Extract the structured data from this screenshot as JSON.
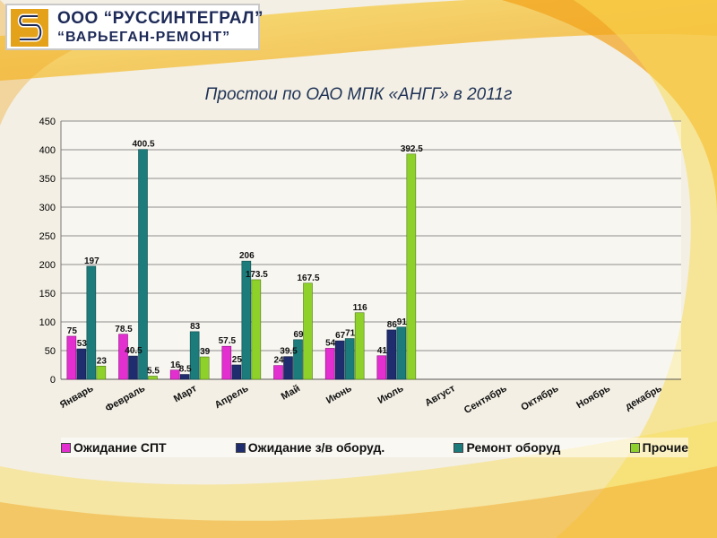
{
  "logo": {
    "line1": "ООО “РУССИНТЕГРАЛ”",
    "line2": "“ВАРЬЕГАН-РЕМОНТ”",
    "mark": "stylized-s-logo"
  },
  "colors": {
    "series": [
      "#e32fd0",
      "#1f2d6e",
      "#1c7b7b",
      "#8fd12b"
    ],
    "bar_edges": [
      "#8a0f7e",
      "#0f1740",
      "#0d4a4a",
      "#507a14"
    ],
    "background_wave_orange": "#f2a21a",
    "background_wave_yellow": "#f8dc56",
    "logo_orange": "#e3a21a",
    "logo_navy": "#1d2a57"
  },
  "chart_data": {
    "type": "bar",
    "title": "Простои по ОАО МПК «АНГГ» в 2011г",
    "categories": [
      "Январь",
      "Февраль",
      "Март",
      "Апрель",
      "Май",
      "Июнь",
      "Июль",
      "Август",
      "Сентябрь",
      "Октябрь",
      "Ноябрь",
      "декабрь"
    ],
    "series": [
      {
        "name": "Ожидание СПТ",
        "values": [
          75,
          78.5,
          16,
          57.5,
          24,
          54,
          41,
          null,
          null,
          null,
          null,
          null
        ],
        "labels": [
          "75",
          "78.5",
          "16",
          "57.5",
          "24",
          "54",
          "41",
          "",
          "",
          "",
          "",
          ""
        ]
      },
      {
        "name": "Ожидание з/в оборуд.",
        "values": [
          53,
          40.5,
          8.5,
          25,
          39.5,
          67,
          86,
          null,
          null,
          null,
          null,
          null
        ],
        "labels": [
          "53",
          "40.5",
          "8.5",
          "25",
          "39.5",
          "67",
          "86",
          "",
          "",
          "",
          "",
          ""
        ]
      },
      {
        "name": "Ремонт оборуд",
        "values": [
          197,
          400.5,
          83,
          206,
          69,
          71,
          91,
          null,
          null,
          null,
          null,
          null
        ],
        "labels": [
          "197",
          "400.5",
          "83",
          "206",
          "69",
          "71",
          "91",
          "",
          "",
          "",
          "",
          ""
        ]
      },
      {
        "name": "Прочие",
        "values": [
          23,
          5.5,
          39,
          173.5,
          167.5,
          116,
          392.5,
          null,
          null,
          null,
          null,
          null
        ],
        "labels": [
          "23",
          "5.5",
          "39",
          "173.5",
          "167.5",
          "116",
          "392.5",
          "",
          "",
          "",
          "",
          ""
        ]
      }
    ],
    "yticks": [
      "0",
      "50",
      "100",
      "150",
      "200",
      "250",
      "300",
      "350",
      "400",
      "450"
    ],
    "ylim": [
      0,
      450
    ],
    "grid": true,
    "legend_position": "bottom"
  }
}
